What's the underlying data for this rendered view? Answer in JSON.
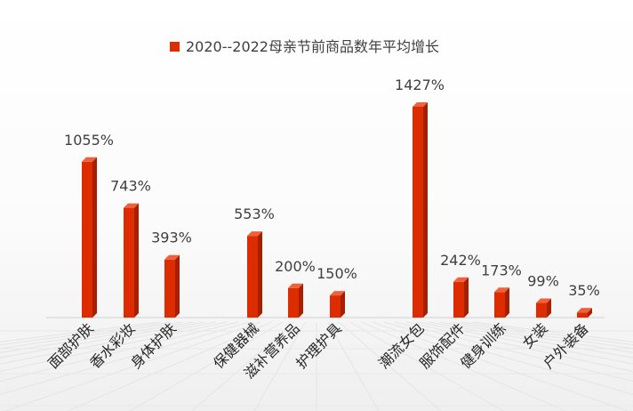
{
  "chart_data": {
    "type": "bar",
    "series": [
      {
        "name": "2020--2022母亲节前商品数年平均增长",
        "color": "#dd2c00",
        "values": [
          1055,
          743,
          393,
          553,
          200,
          150,
          1427,
          242,
          173,
          99,
          35
        ]
      }
    ],
    "categories": [
      "面部护肤",
      "香水彩妆",
      "身体护肤",
      "保健器械",
      "滋补营养品",
      "护理护具",
      "潮流女包",
      "服饰配件",
      "健身训练",
      "女装",
      "户外装备"
    ],
    "data_labels": [
      "1055%",
      "743%",
      "393%",
      "553%",
      "200%",
      "150%",
      "1427%",
      "242%",
      "173%",
      "99%",
      "35%"
    ],
    "unit": "%",
    "groups": [
      [
        "面部护肤",
        "香水彩妆",
        "身体护肤"
      ],
      [
        "保健器械",
        "滋补营养品",
        "护理护具"
      ],
      [
        "潮流女包",
        "服饰配件",
        "健身训练",
        "女装",
        "户外装备"
      ]
    ],
    "legend_position": "top",
    "grid": false,
    "ylim": [
      0,
      1500
    ]
  }
}
